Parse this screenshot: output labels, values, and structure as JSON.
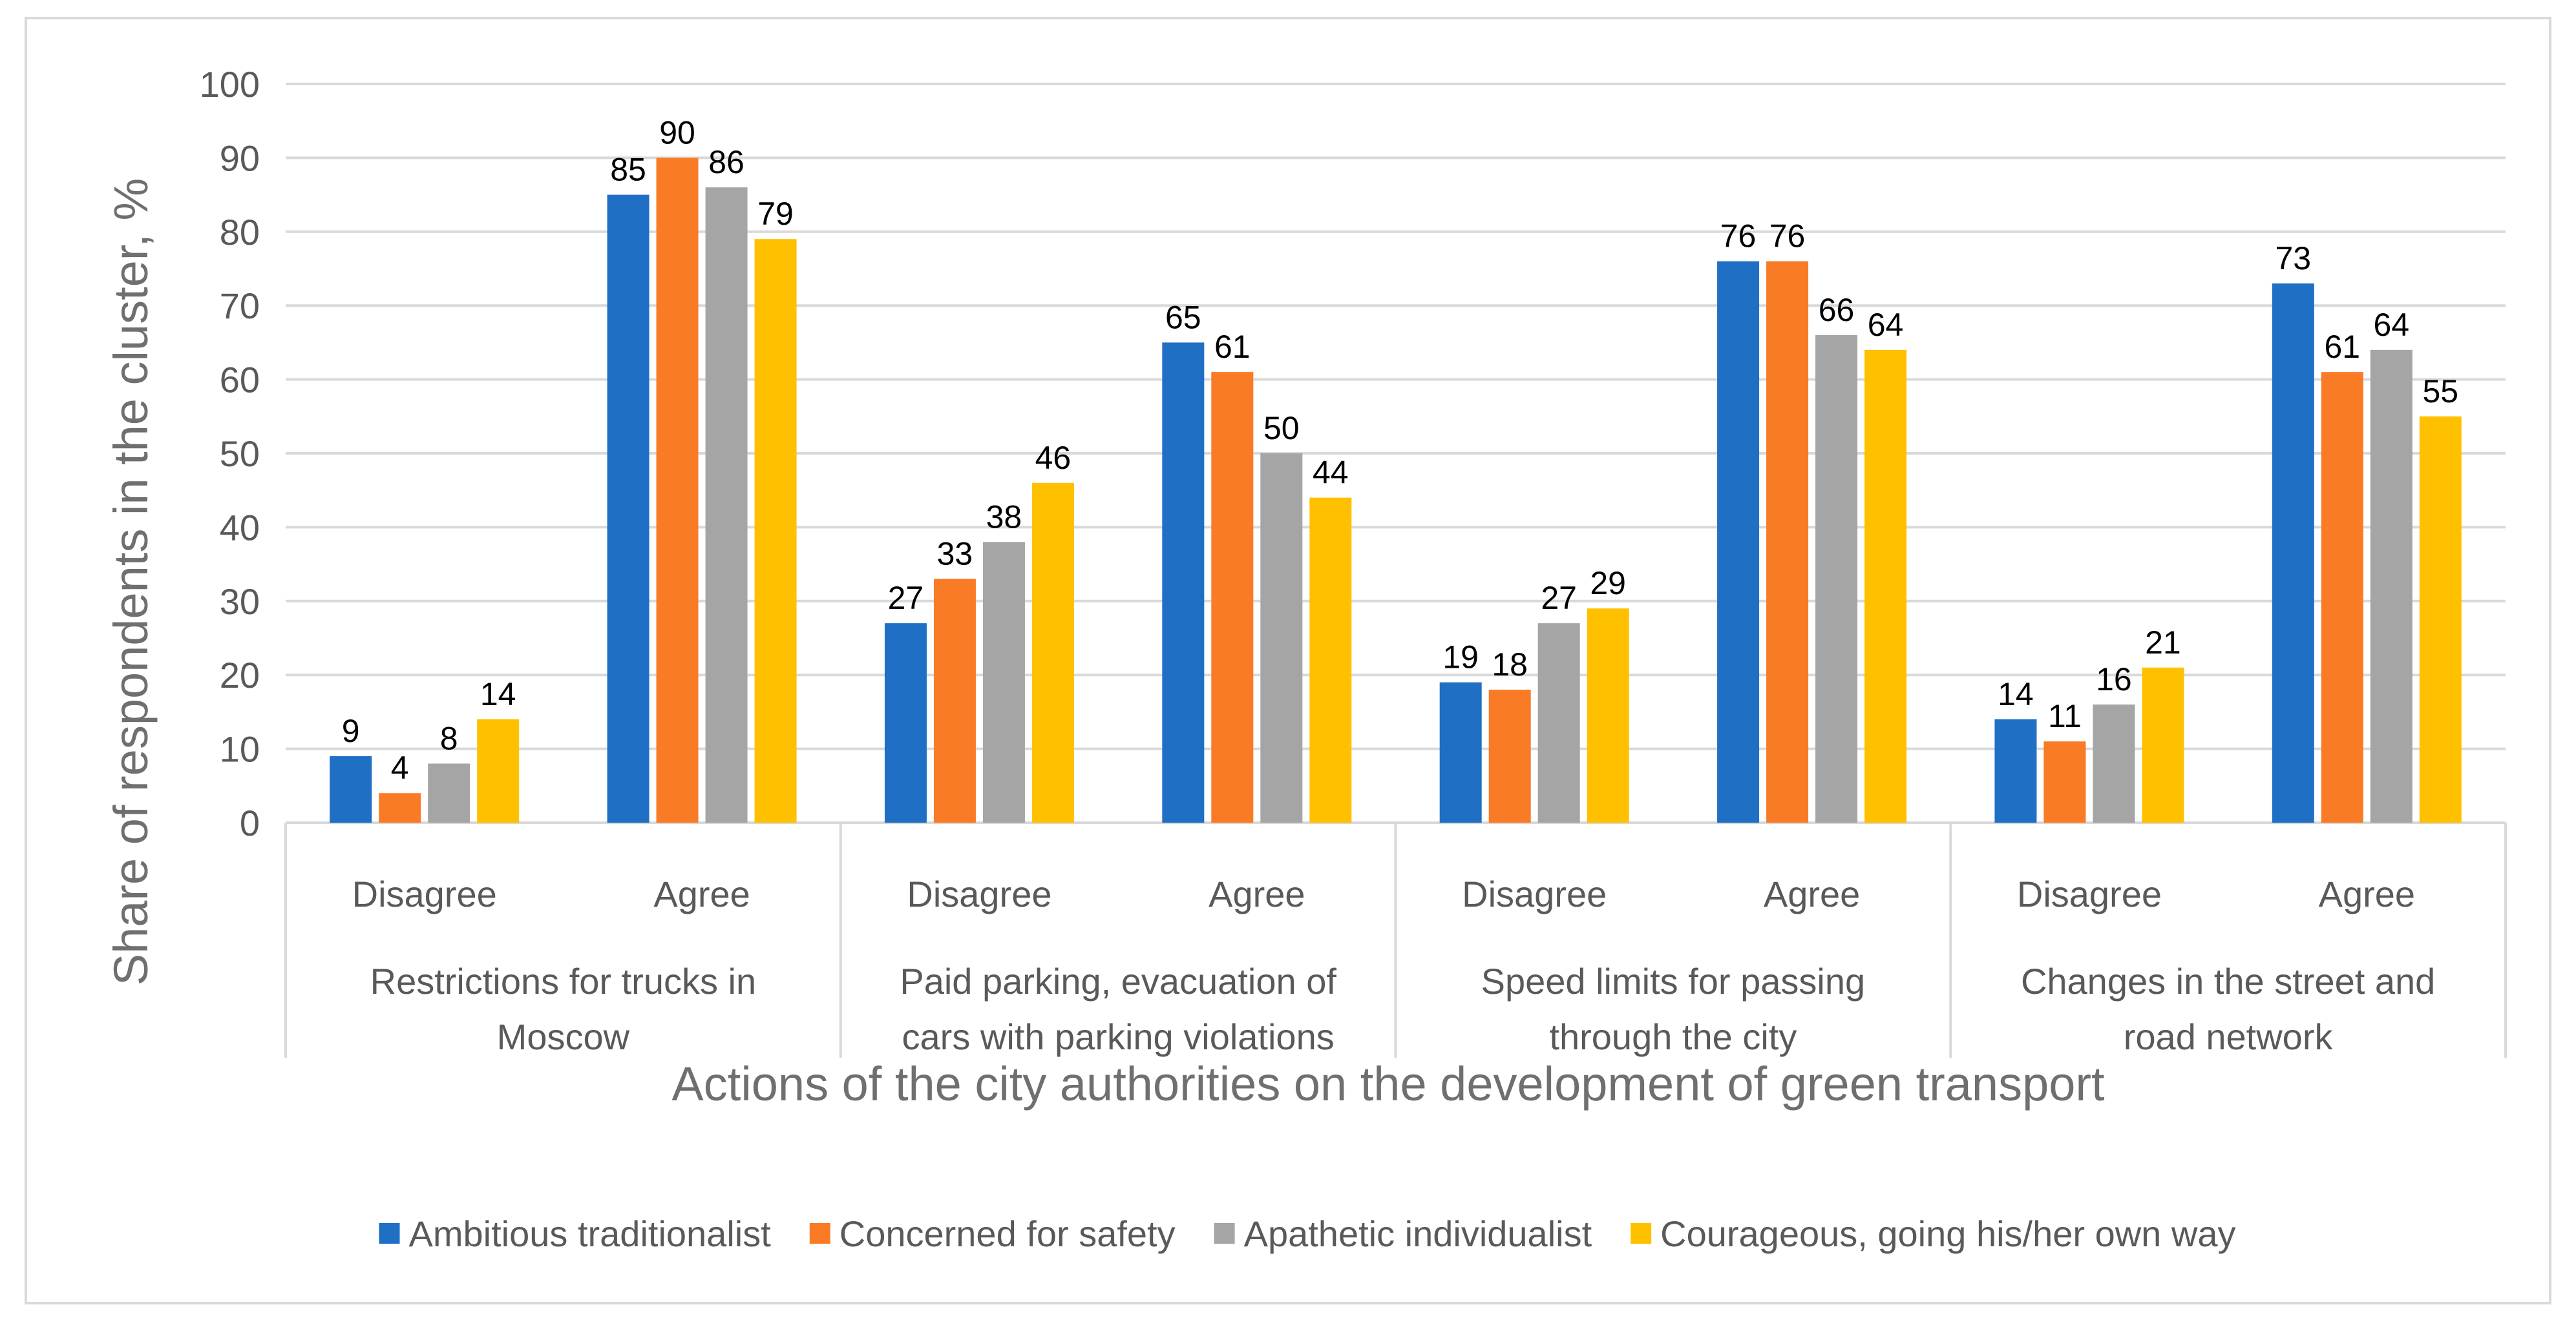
{
  "chart_data": {
    "type": "bar",
    "title": "",
    "xlabel": "Actions of the city authorities on the development of green transport",
    "ylabel": "Share of respondents in the cluster, %",
    "ylim": [
      0,
      100
    ],
    "yticks": [
      "0",
      "10",
      "20",
      "30",
      "40",
      "50",
      "60",
      "70",
      "80",
      "90",
      "100"
    ],
    "grid": true,
    "legend_position": "bottom",
    "groups": [
      "Restrictions for trucks in Moscow",
      "Paid parking, evacuation of cars with parking violations",
      "Speed limits for passing through the city",
      "Changes in the street and road network"
    ],
    "group_label_lines": [
      [
        "Restrictions for trucks in",
        "Moscow"
      ],
      [
        "Paid parking, evacuation of",
        "cars with parking violations"
      ],
      [
        "Speed limits for passing",
        "through the city"
      ],
      [
        "Changes in the street and",
        "road network"
      ]
    ],
    "categories": [
      "Disagree",
      "Agree",
      "Disagree",
      "Agree",
      "Disagree",
      "Agree",
      "Disagree",
      "Agree"
    ],
    "series": [
      {
        "name": "Ambitious traditionalist",
        "color": "#1f6fc5",
        "values": [
          9,
          85,
          27,
          65,
          19,
          76,
          14,
          73
        ]
      },
      {
        "name": "Concerned for safety",
        "color": "#f97b26",
        "values": [
          4,
          90,
          33,
          61,
          18,
          76,
          11,
          61
        ]
      },
      {
        "name": "Apathetic individualist",
        "color": "#a5a5a5",
        "values": [
          8,
          86,
          38,
          50,
          27,
          66,
          16,
          64
        ]
      },
      {
        "name": "Courageous, going his/her own way",
        "color": "#ffc000",
        "values": [
          14,
          79,
          46,
          44,
          29,
          64,
          21,
          55
        ]
      }
    ]
  }
}
